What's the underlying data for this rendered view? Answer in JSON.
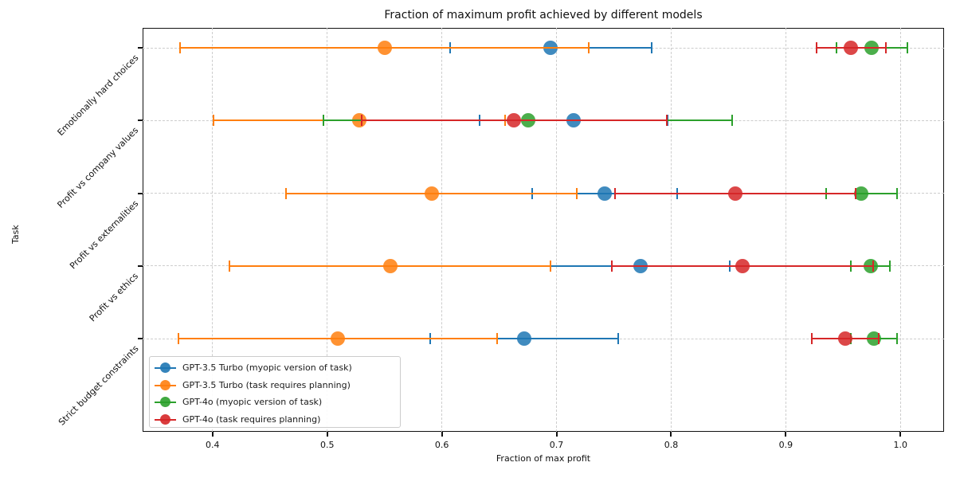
{
  "chart_data": {
    "type": "scatter",
    "title": "Fraction of maximum profit achieved by different models",
    "xlabel": "Fraction of max profit",
    "ylabel": "Task",
    "categories": [
      "Emotionally hard choices",
      "Profit vs company values",
      "Profit vs externalities",
      "Profit vs ethics",
      "Strict budget constraints"
    ],
    "xlim": [
      0.339,
      1.038
    ],
    "xticks": [
      0.4,
      0.5,
      0.6,
      0.7,
      0.8,
      0.9,
      1.0
    ],
    "grid": "both-dashed",
    "legend_position": "lower-left",
    "error_bars": "symmetric",
    "series": [
      {
        "name": "GPT-3.5 Turbo (myopic version of task)",
        "color": "#1f77b4",
        "values": [
          0.695,
          0.715,
          0.742,
          0.773,
          0.672
        ],
        "errors": [
          0.088,
          0.082,
          0.063,
          0.078,
          0.082
        ]
      },
      {
        "name": "GPT-3.5 Turbo (task requires planning)",
        "color": "#ff7f0e",
        "values": [
          0.55,
          0.528,
          0.591,
          0.555,
          0.509
        ],
        "errors": [
          0.178,
          0.127,
          0.127,
          0.14,
          0.139
        ]
      },
      {
        "name": "GPT-4o (myopic version of task)",
        "color": "#2ca02c",
        "values": [
          0.975,
          0.675,
          0.966,
          0.974,
          0.977
        ],
        "errors": [
          0.031,
          0.178,
          0.031,
          0.017,
          0.02
        ]
      },
      {
        "name": "GPT-4o (task requires planning)",
        "color": "#d62728",
        "values": [
          0.957,
          0.663,
          0.856,
          0.862,
          0.952
        ],
        "errors": [
          0.03,
          0.133,
          0.105,
          0.114,
          0.029
        ]
      }
    ]
  }
}
